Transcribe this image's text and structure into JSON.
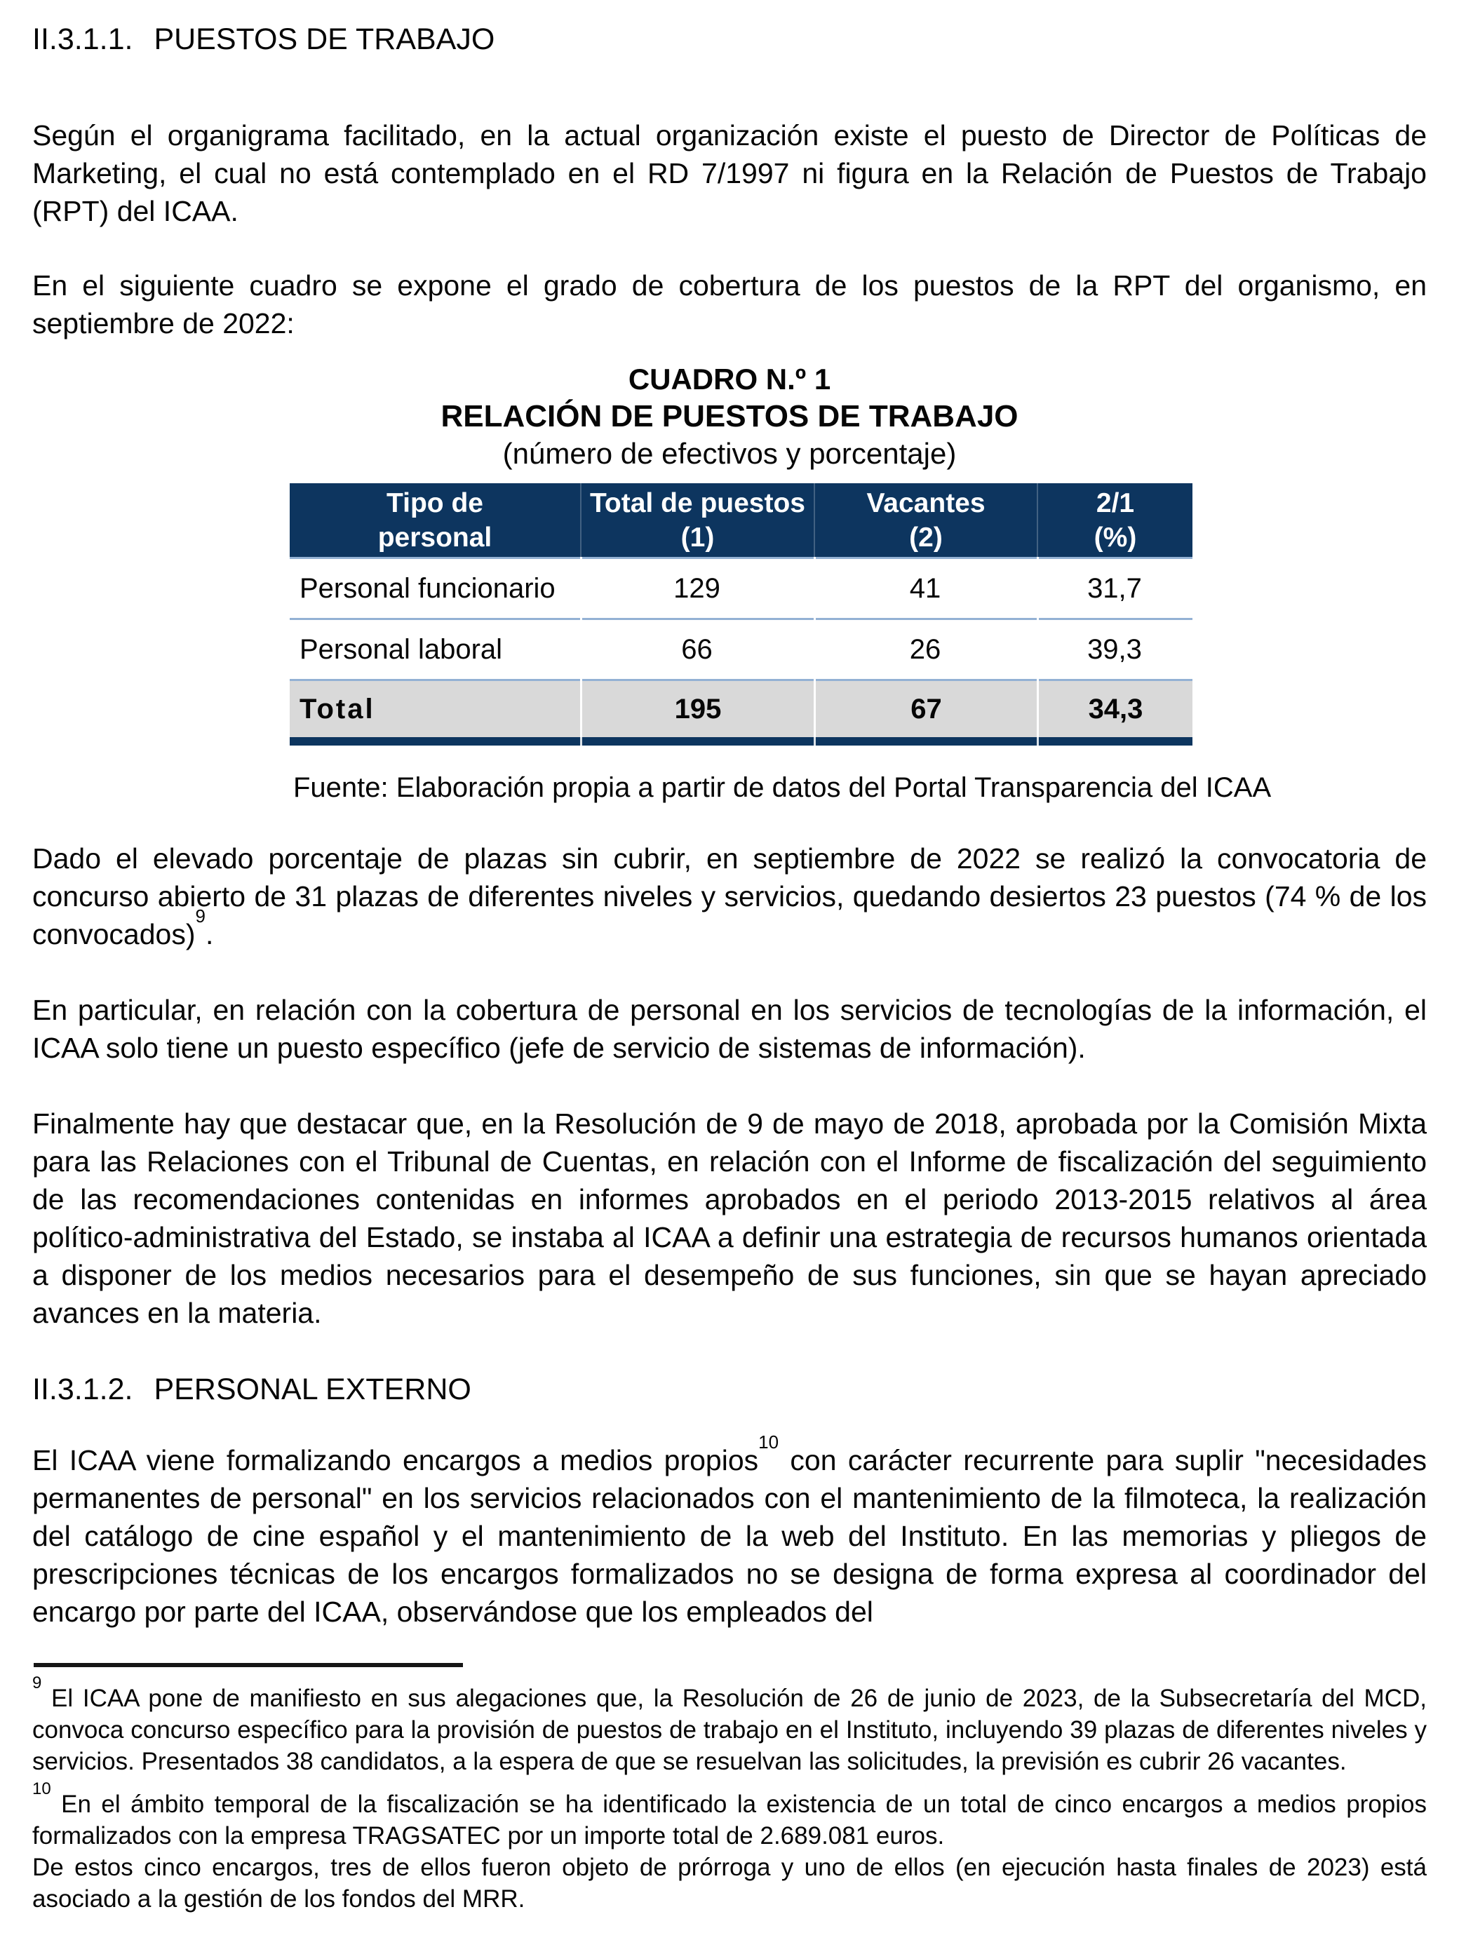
{
  "colors": {
    "header_navy": "#0D355F",
    "separator_blue": "#93B1D4",
    "total_row_gray": "#D9D9D9",
    "text": "#060606"
  },
  "section1": {
    "number": "II.3.1.1.",
    "title": "PUESTOS DE TRABAJO"
  },
  "section2": {
    "number": "II.3.1.2.",
    "title": "PERSONAL EXTERNO"
  },
  "paragraphs": {
    "p1": "Según el organigrama facilitado, en la actual organización existe el puesto de Director de Políticas de Marketing, el cual no está contemplado en el RD 7/1997 ni figura en la Relación de Puestos de Trabajo (RPT) del ICAA.",
    "p2": "En el siguiente cuadro se expone el grado de cobertura de los puestos de la RPT del organismo, en septiembre de 2022:",
    "p3_pre": "Dado el elevado porcentaje de plazas sin cubrir, en septiembre de 2022 se realizó la convocatoria de concurso abierto de 31 plazas de diferentes niveles y servicios, quedando desiertos 23 puestos (74 % de los convocados)",
    "p3_sup": "9",
    "p3_post": ".",
    "p4": "En particular, en relación con la cobertura de personal en los servicios de tecnologías de la información, el ICAA solo tiene un puesto específico (jefe de servicio de sistemas de información).",
    "p5": "Finalmente hay que destacar que, en la Resolución de 9 de mayo de 2018, aprobada por la Comisión Mixta para las Relaciones con el Tribunal de Cuentas, en relación con el Informe de fiscalización del seguimiento de las recomendaciones contenidas en informes aprobados en el periodo 2013-2015 relativos al área político-administrativa del Estado, se instaba al ICAA a definir una estrategia de recursos humanos orientada a disponer de los medios necesarios para el desempeño de sus funciones, sin que se hayan apreciado avances en la materia.",
    "p6_pre": "El ICAA viene formalizando encargos a medios propios",
    "p6_sup": "10",
    "p6_post": " con carácter recurrente para suplir \"necesidades permanentes de personal\" en los servicios relacionados con el mantenimiento de la filmoteca, la realización del catálogo de cine español y el mantenimiento de la web del Instituto. En las memorias y pliegos de prescripciones técnicas de los encargos formalizados no se designa de forma expresa al coordinador del encargo por parte del ICAA, observándose que los empleados del"
  },
  "cuadro": {
    "title1": "CUADRO N.º 1",
    "title2": "RELACIÓN DE PUESTOS DE TRABAJO",
    "subtitle": "(número de efectivos y porcentaje)",
    "headers": [
      {
        "l1": "Tipo de",
        "l2": "personal"
      },
      {
        "l1": "Total de puestos",
        "l2": "(1)"
      },
      {
        "l1": "Vacantes",
        "l2": "(2)"
      },
      {
        "l1": "2/1",
        "l2": "(%)"
      }
    ],
    "rows": [
      {
        "tipo": "Personal funcionario",
        "total": "129",
        "vacantes": "41",
        "pct": "31,7"
      },
      {
        "tipo": "Personal laboral",
        "total": "66",
        "vacantes": "26",
        "pct": "39,3"
      }
    ],
    "total_row": {
      "tipo": "Total",
      "total": "195",
      "vacantes": "67",
      "pct": "34,3"
    },
    "fuente": "Fuente: Elaboración propia a partir de datos del Portal Transparencia del ICAA"
  },
  "footnotes": {
    "fn9_sup": "9",
    "fn9_text": " El ICAA pone de manifiesto en sus alegaciones que, la Resolución de 26 de junio de 2023, de la Subsecretaría del MCD, convoca concurso específico para la provisión de puestos de trabajo en el Instituto, incluyendo 39 plazas de diferentes niveles y servicios. Presentados 38 candidatos, a la espera de que se resuelvan las solicitudes, la previsión es cubrir 26 vacantes.",
    "fn10_sup": "10",
    "fn10_text1": " En el ámbito temporal de la fiscalización se ha identificado la existencia de un total de cinco encargos a medios propios formalizados con la empresa TRAGSATEC por un importe total de 2.689.081 euros.",
    "fn10_text2": "De estos cinco encargos, tres de ellos fueron objeto de prórroga y uno de ellos (en ejecución hasta finales de 2023) está asociado a la gestión de los fondos del MRR."
  }
}
